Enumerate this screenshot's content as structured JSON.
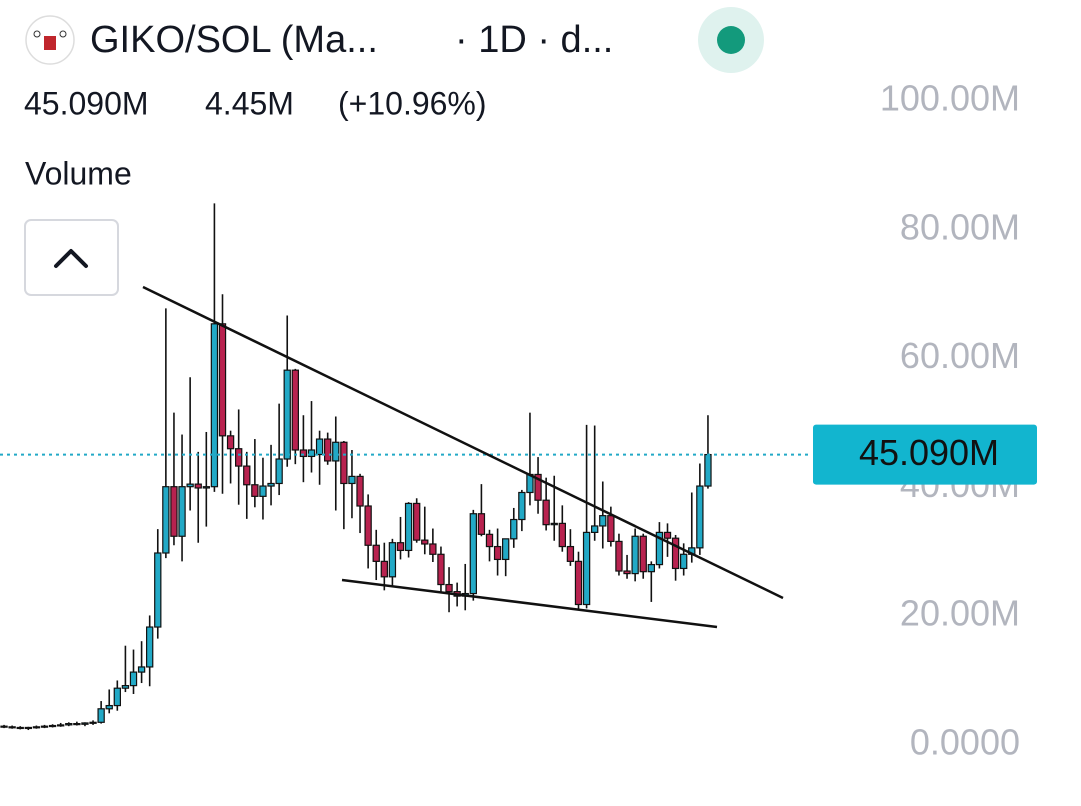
{
  "chart_data": {
    "type": "candlestick",
    "title": "GIKO/SOL (Ma...",
    "subtitle": "· 1D · d...",
    "change": "4.45M",
    "change_pct": "(+10.96%)",
    "pane_label": "Volume",
    "last_price": {
      "value": 45.09,
      "label": "45.090M"
    },
    "up_color": "#22a9c6",
    "down_color": "#b8224f",
    "ylim": [
      -9.5,
      115.7
    ],
    "yticks": [
      {
        "value": 0,
        "label": "0.0000"
      },
      {
        "value": 20,
        "label": "20.00M"
      },
      {
        "value": 40,
        "label": "40.00M"
      },
      {
        "value": 60,
        "label": "60.00M"
      },
      {
        "value": 80,
        "label": "80.00M"
      },
      {
        "value": 100,
        "label": "100.00M"
      }
    ],
    "open": [
      2.9,
      2.8,
      2.7,
      2.6,
      2.7,
      2.8,
      2.9,
      3.0,
      3.1,
      3.3,
      3.2,
      3.4,
      3.5,
      5.6,
      6.1,
      8.8,
      9.2,
      11.3,
      12.1,
      18.3,
      29.8,
      40.1,
      32.4,
      40.1,
      40.5,
      39.9,
      40.1,
      65.4,
      48.0,
      46.0,
      43.3,
      40.4,
      38.6,
      40.2,
      40.6,
      44.4,
      58.2,
      45.8,
      44.8,
      45.1,
      47.5,
      44.1,
      47.0,
      40.6,
      41.7,
      37.1,
      31.0,
      28.5,
      26.1,
      31.4,
      30.2,
      37.5,
      31.8,
      31.2,
      29.6,
      24.9,
      23.8,
      23.1,
      23.5,
      35.9,
      32.7,
      30.8,
      28.8,
      32.0,
      35.0,
      39.2,
      42.0,
      38.0,
      34.2,
      34.4,
      30.8,
      28.5,
      21.8,
      33.0,
      34.0,
      35.6,
      31.6,
      27.0,
      26.6,
      32.4,
      26.9,
      28.0,
      33.0,
      32.1,
      27.4,
      29.6,
      30.6,
      40.2
    ],
    "high": [
      3.1,
      3.0,
      2.9,
      2.8,
      3.0,
      3.1,
      3.2,
      3.4,
      3.5,
      3.6,
      3.5,
      3.8,
      6.8,
      8.6,
      10.0,
      15.4,
      14.8,
      16.1,
      20.1,
      33.5,
      67.8,
      51.6,
      48.2,
      57.1,
      45.5,
      48.6,
      84.1,
      70.0,
      48.8,
      52.1,
      45.5,
      47.5,
      44.6,
      46.6,
      53.0,
      66.7,
      58.4,
      51.2,
      53.4,
      48.8,
      48.5,
      51.0,
      47.2,
      45.8,
      42.1,
      38.9,
      33.4,
      31.4,
      32.0,
      35.4,
      37.7,
      38.3,
      37.0,
      33.6,
      30.8,
      27.6,
      25.2,
      28.1,
      36.5,
      40.5,
      33.4,
      33.6,
      32.0,
      36.8,
      39.6,
      51.6,
      44.7,
      41.5,
      41.8,
      37.2,
      33.5,
      30.0,
      49.7,
      49.6,
      40.9,
      37.0,
      32.8,
      29.5,
      33.6,
      32.8,
      28.5,
      34.6,
      34.4,
      32.6,
      31.3,
      39.2,
      43.7,
      51.2
    ],
    "low": [
      2.6,
      2.5,
      2.4,
      2.3,
      2.5,
      2.6,
      2.7,
      2.8,
      2.9,
      3.0,
      2.9,
      3.1,
      3.3,
      4.9,
      5.3,
      8.2,
      7.9,
      9.6,
      9.1,
      16.5,
      29.0,
      31.0,
      28.5,
      36.4,
      31.4,
      33.9,
      39.3,
      39.0,
      40.6,
      37.3,
      35.1,
      36.9,
      35.0,
      37.2,
      38.8,
      43.2,
      43.6,
      40.8,
      42.3,
      40.4,
      43.5,
      36.4,
      33.5,
      35.2,
      32.9,
      27.4,
      25.6,
      24.0,
      24.6,
      28.8,
      29.1,
      31.4,
      29.6,
      28.4,
      23.8,
      20.6,
      21.5,
      20.9,
      22.4,
      32.4,
      28.5,
      26.3,
      26.2,
      30.6,
      33.2,
      37.2,
      35.9,
      33.3,
      31.7,
      30.0,
      27.8,
      21.0,
      21.2,
      31.7,
      30.5,
      30.8,
      26.3,
      25.8,
      25.4,
      25.8,
      22.2,
      27.4,
      29.2,
      25.5,
      26.3,
      28.3,
      29.5,
      39.8
    ],
    "close": [
      2.8,
      2.7,
      2.6,
      2.7,
      2.8,
      2.9,
      3.0,
      3.1,
      3.3,
      3.2,
      3.4,
      3.5,
      5.6,
      6.1,
      8.8,
      9.2,
      11.3,
      12.1,
      18.3,
      29.8,
      40.1,
      32.4,
      40.1,
      40.5,
      39.9,
      40.1,
      65.4,
      48.0,
      46.0,
      43.3,
      40.4,
      38.6,
      40.2,
      40.6,
      44.4,
      58.2,
      45.8,
      44.8,
      45.8,
      47.5,
      44.1,
      47.0,
      40.6,
      41.7,
      37.1,
      31.0,
      28.5,
      26.1,
      31.4,
      30.2,
      37.5,
      31.8,
      31.2,
      29.6,
      24.9,
      23.8,
      23.1,
      23.5,
      35.9,
      32.7,
      30.8,
      28.8,
      32.0,
      35.0,
      39.2,
      42.0,
      38.0,
      34.2,
      34.4,
      30.8,
      28.5,
      21.8,
      33.0,
      34.0,
      35.6,
      31.6,
      27.0,
      26.6,
      32.4,
      26.9,
      28.0,
      33.0,
      32.1,
      27.4,
      29.6,
      30.6,
      40.2,
      45.09
    ]
  }
}
